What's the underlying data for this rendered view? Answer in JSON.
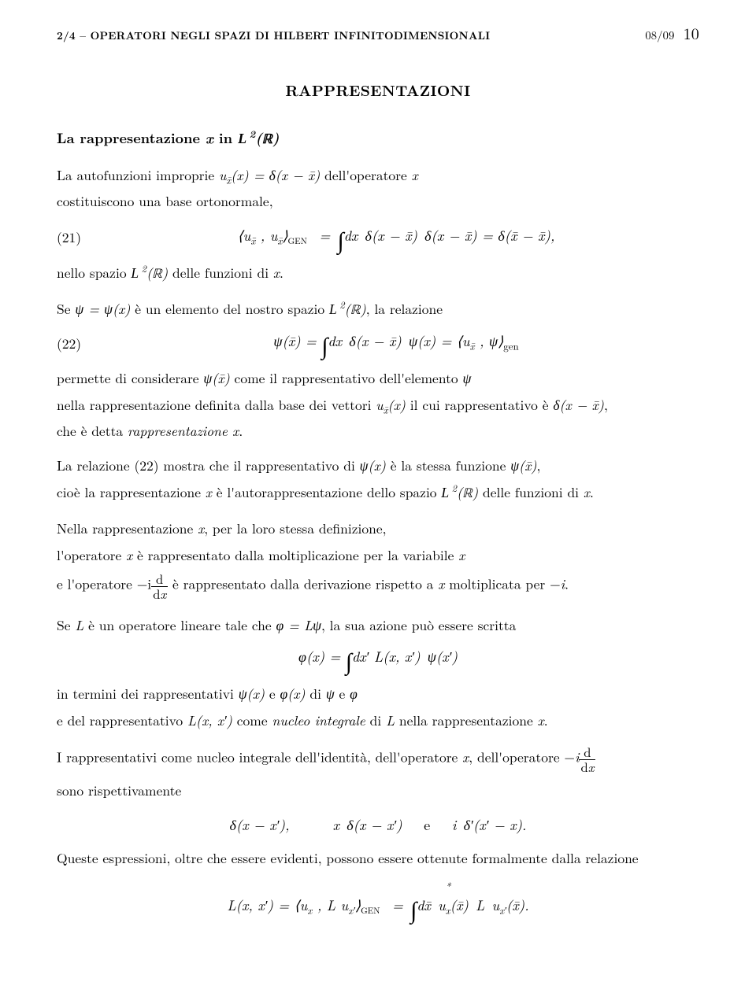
{
  "header": {
    "left": "2/4 – OPERATORI NEGLI SPAZI DI HILBERT INFINITODIMENSIONALI",
    "rightDate": "08/09",
    "pageNumber": "10"
  },
  "title": "RAPPRESENTAZIONI",
  "subtitle_pre": "La rappresentazione ",
  "subtitle_mid": "x",
  "subtitle_post": " in ",
  "subtitle_space": "ℒ ²(ℝ)",
  "p1a": "La autofunzioni improprie ",
  "p1b": "u",
  "p1c": "(x) = δ(x − x̄) dell'operatore x",
  "p1d": "costituiscono una base ortonormale,",
  "eq21num": "(21)",
  "eq21": "⟨u_{x̄̄} , u_{x̄}⟩_{GEN} = ∫dx δ(x − x̄̄) δ(x − x̄) = δ(x̄̄ − x̄),",
  "p2": "nello spazio ℒ ²(ℝ) delle funzioni di x.",
  "p3": "Se ψ = ψ(x) è un elemento del nostro spazio ℒ ²(ℝ), la relazione",
  "eq22num": "(22)",
  "eq22": "ψ(x̄) = ∫dx δ(x − x̄) ψ(x) = ⟨u_{x̄} , ψ⟩_{gen}",
  "p4a": "permette di considerare ψ(x̄) come il rappresentativo dell'elemento ψ",
  "p4b": "nella rappresentazione definita dalla base dei vettori u_{x̄}(x) il cui rappresentativo è δ(x − x̄),",
  "p4c": "che è detta ",
  "p4c_em": "rappresentazione x",
  "p4c_end": ".",
  "p5a": "La relazione (22) mostra che il rappresentativo di ψ(x) è la stessa funzione ψ(x̄),",
  "p5b": "cioè la rappresentazione x è l'autorappresentazione dello spazio ℒ ²(ℝ) delle funzioni di x.",
  "p6a": "Nella rappresentazione x, per la loro stessa definizione,",
  "p6b": "l'operatore x è rappresentato dalla moltiplicazione per la variabile x",
  "p6c_pre": "e l'operatore −i",
  "p6c_post": " è rappresentato dalla derivazione rispetto a x moltiplicata per −i.",
  "frac_d": "d",
  "frac_dx": "dx",
  "p7": "Se L è un operatore lineare tale che φ = Lψ, la sua azione può essere scritta",
  "eqL": "φ(x) = ∫dx′ L(x, x′) ψ(x′)",
  "p8a": "in termini dei rappresentativi ψ(x) e φ(x) di ψ e φ",
  "p8b_pre": "e del rappresentativo L(x, x′) come ",
  "p8b_em": "nucleo integrale",
  "p8b_post": " di L nella rappresentazione x.",
  "p9_pre": "I rappresentativi come nucleo integrale dell'identità, dell'operatore x, dell'operatore −i",
  "p9_post": "sono rispettivamente",
  "eqK": "δ(x − x′),      x δ(x − x′)   e   i δ′(x′ − x).",
  "p10": "Queste espressioni, oltre che essere evidenti, possono essere ottenute formalmente dalla relazione",
  "eqFinal": "L(x, x′) = ⟨u_x , L u_{x′}⟩_{GEN} = ∫dx̄ u*_x(x̄) L u_{x′}(x̄)."
}
